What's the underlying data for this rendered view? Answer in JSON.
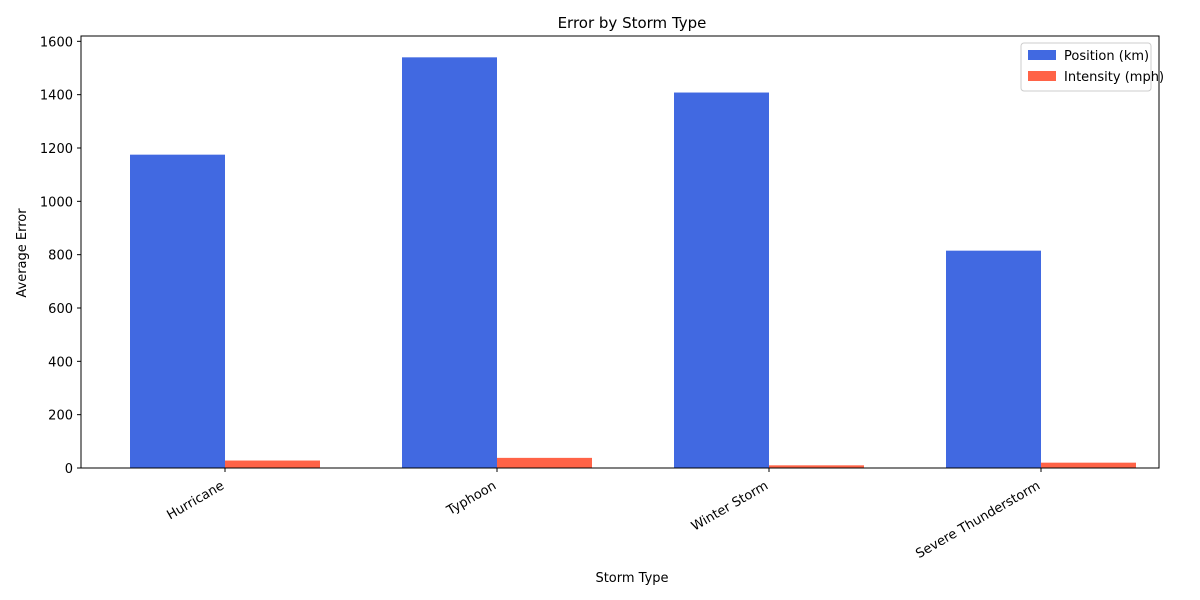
{
  "chart_data": {
    "type": "bar",
    "title": "Error by Storm Type",
    "xlabel": "Storm Type",
    "ylabel": "Average Error",
    "categories": [
      "Hurricane",
      "Typhoon",
      "Winter Storm",
      "Severe Thunderstorm"
    ],
    "series": [
      {
        "name": "Position (km)",
        "values": [
          1175,
          1540,
          1408,
          815
        ],
        "color": "#4169E1"
      },
      {
        "name": "Intensity (mph)",
        "values": [
          28,
          38,
          10,
          20
        ],
        "color": "#FF6347"
      }
    ],
    "ylim": [
      0,
      1620
    ],
    "yticks": [
      0,
      200,
      400,
      600,
      800,
      1000,
      1200,
      1400,
      1600
    ],
    "grid": false,
    "legend": "top-right"
  }
}
